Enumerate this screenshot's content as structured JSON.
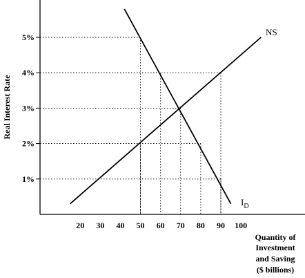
{
  "chart_data": {
    "type": "line",
    "ylabel": "Real Interest Rate",
    "xlabel_lines": [
      "Quantity of",
      "Investment",
      "and Saving",
      "($ billions)"
    ],
    "x_ticks": [
      "20",
      "30",
      "40",
      "50",
      "60",
      "70",
      "80",
      "90",
      "100"
    ],
    "y_ticks": [
      "1%",
      "2%",
      "3%",
      "4%",
      "5%"
    ],
    "xlim": [
      0,
      100
    ],
    "ylim": [
      0,
      6
    ],
    "series": [
      {
        "name": "NS",
        "label_main": "NS",
        "label_sub": "",
        "color": "#000000",
        "points": [
          [
            15,
            0.3
          ],
          [
            50,
            2
          ],
          [
            70,
            3
          ],
          [
            90,
            4
          ],
          [
            110,
            5
          ]
        ]
      },
      {
        "name": "ID",
        "label_main": "I",
        "label_sub": "D",
        "color": "#000000",
        "points": [
          [
            42,
            5.8
          ],
          [
            50,
            5
          ],
          [
            60,
            4
          ],
          [
            70,
            3
          ],
          [
            80,
            2
          ],
          [
            90,
            1
          ],
          [
            95,
            0.3
          ]
        ]
      }
    ],
    "guides": [
      {
        "x": 50,
        "y": 5
      },
      {
        "x": 60,
        "y": 4
      },
      {
        "x": 70,
        "y": 3
      },
      {
        "x": 80,
        "y": 2
      },
      {
        "x": 90,
        "y": 1
      },
      {
        "x": 50,
        "y": 2
      },
      {
        "x": 90,
        "y": 4
      }
    ],
    "grid": false
  }
}
